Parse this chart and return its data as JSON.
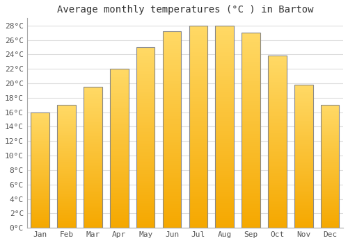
{
  "title": "Average monthly temperatures (°C ) in Bartow",
  "months": [
    "Jan",
    "Feb",
    "Mar",
    "Apr",
    "May",
    "Jun",
    "Jul",
    "Aug",
    "Sep",
    "Oct",
    "Nov",
    "Dec"
  ],
  "values": [
    16.0,
    17.0,
    19.5,
    22.0,
    25.0,
    27.2,
    28.0,
    28.0,
    27.0,
    23.8,
    19.8,
    17.0
  ],
  "bar_color_bottom": "#F5A800",
  "bar_color_top": "#FFD966",
  "bar_edge_color": "#888888",
  "ylim": [
    0,
    29
  ],
  "yticks": [
    0,
    2,
    4,
    6,
    8,
    10,
    12,
    14,
    16,
    18,
    20,
    22,
    24,
    26,
    28
  ],
  "ytick_labels": [
    "0°C",
    "2°C",
    "4°C",
    "6°C",
    "8°C",
    "10°C",
    "12°C",
    "14°C",
    "16°C",
    "18°C",
    "20°C",
    "22°C",
    "24°C",
    "26°C",
    "28°C"
  ],
  "background_color": "#ffffff",
  "grid_color": "#dddddd",
  "title_fontsize": 10,
  "tick_fontsize": 8,
  "font_family": "monospace"
}
